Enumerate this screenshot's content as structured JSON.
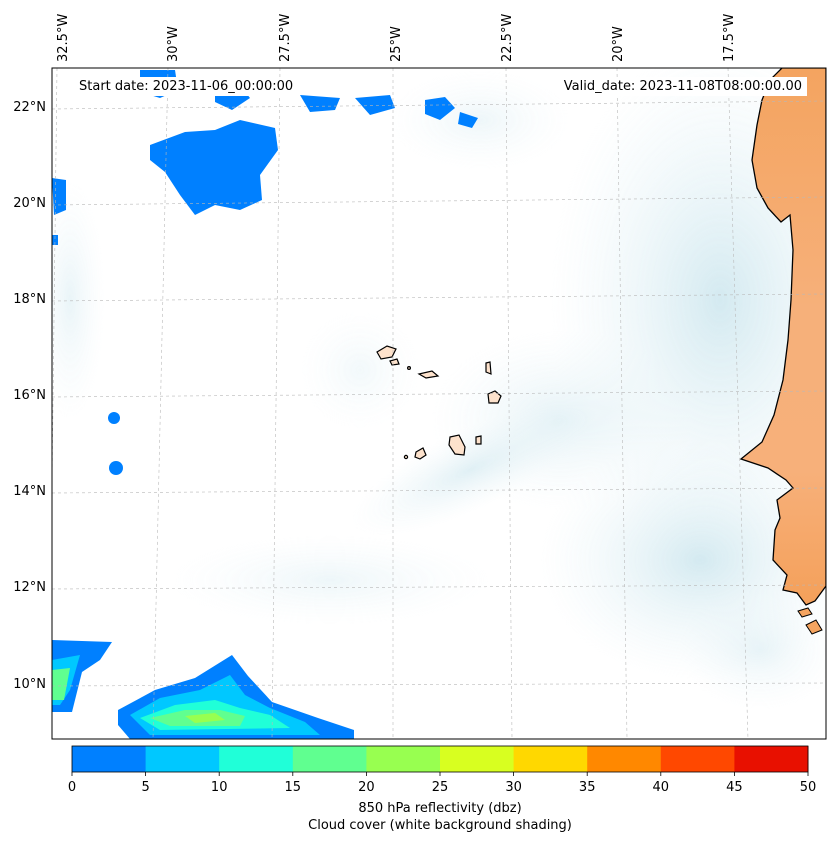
{
  "header": {
    "start_date": "Start date: 2023-11-06_00:00:00",
    "valid_date": "Valid_date: 2023-11-08T08:00:00.00"
  },
  "map": {
    "lon_labels": [
      "32.5°W",
      "30°W",
      "27.5°W",
      "25°W",
      "22.5°W",
      "20°W",
      "17.5°W"
    ],
    "lat_labels": [
      "22°N",
      "20°N",
      "18°N",
      "16°N",
      "14°N",
      "12°N",
      "10°N"
    ],
    "gridlines": "dashed",
    "land_color": "#f4a460",
    "cloud_shading_color": "#add8e6"
  },
  "colorbar": {
    "tick_labels": [
      "0",
      "5",
      "10",
      "15",
      "20",
      "25",
      "30",
      "35",
      "40",
      "45",
      "50"
    ],
    "colors": [
      "#0080ff",
      "#00c8ff",
      "#20ffd8",
      "#60ff90",
      "#98ff50",
      "#d8ff20",
      "#ffd800",
      "#ff8800",
      "#ff4800",
      "#e81000"
    ],
    "label_line1": "850 hPa reflectivity (dbz)",
    "label_line2": "Cloud cover (white background shading)"
  }
}
